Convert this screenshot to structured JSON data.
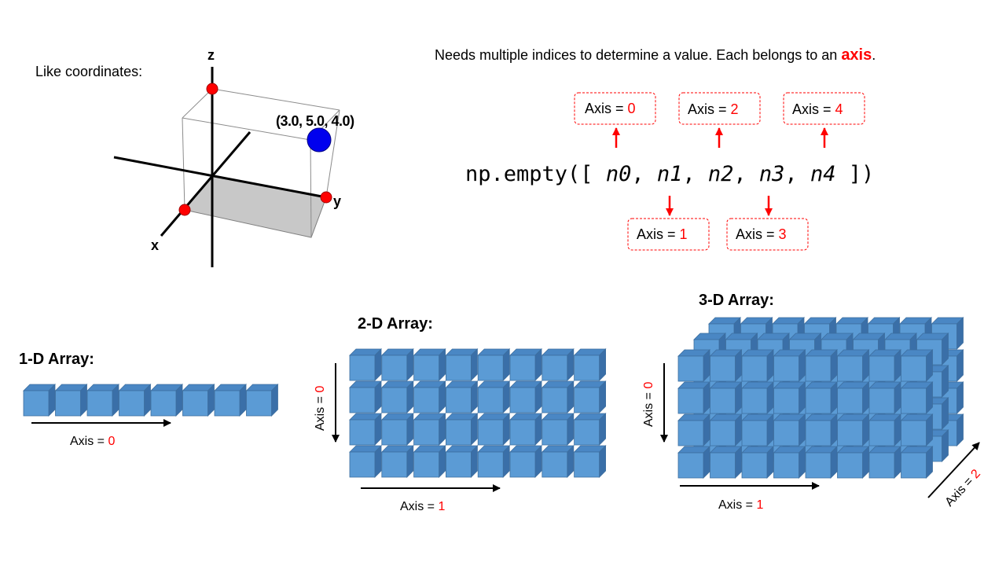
{
  "coords": {
    "caption": "Like coordinates:",
    "axis_z": "z",
    "axis_y": "y",
    "axis_x": "x",
    "point_label": "(3.0, 5.0, 4.0)"
  },
  "intro": {
    "text_before": "Needs multiple  indices to determine  a value. Each belongs to an ",
    "highlight": "axis",
    "text_after": "."
  },
  "code": {
    "prefix": "np.empty([ ",
    "params": [
      "n0",
      "n1",
      "n2",
      "n3",
      "n4"
    ],
    "sep": ", ",
    "suffix": " ])"
  },
  "axis_prefix": "Axis = ",
  "axis_boxes": [
    {
      "value": "0"
    },
    {
      "value": "2"
    },
    {
      "value": "4"
    },
    {
      "value": "1"
    },
    {
      "value": "3"
    }
  ],
  "arrays": [
    {
      "title": "1-D Array:",
      "labels": [
        {
          "value": "0"
        }
      ]
    },
    {
      "title": "2-D Array:",
      "labels": [
        {
          "value": "0"
        },
        {
          "value": "1"
        }
      ]
    },
    {
      "title": "3-D Array:",
      "labels": [
        {
          "value": "0"
        },
        {
          "value": "1"
        },
        {
          "value": "2"
        }
      ]
    }
  ],
  "colors": {
    "accent_red": "#ff0000",
    "cube_front": "#5b9bd5",
    "cube_top": "#4a87c4",
    "cube_side": "#3a6fa8",
    "cube_edge": "#3d6e9e",
    "highlight_bg": "#f4a0a0"
  }
}
